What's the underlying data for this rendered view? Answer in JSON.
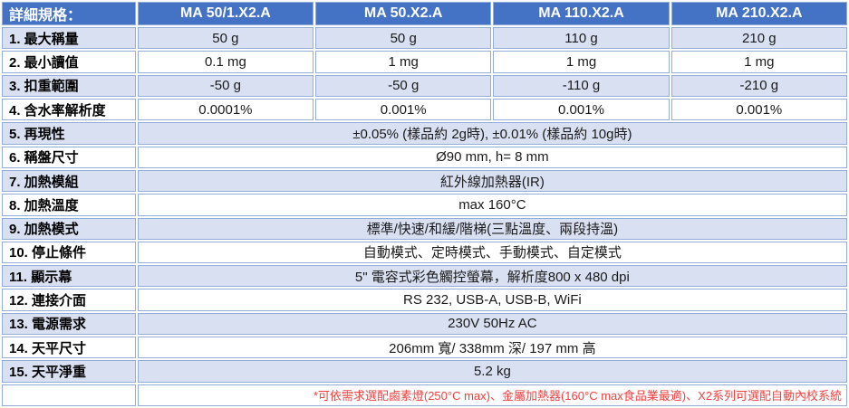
{
  "table": {
    "header": {
      "label": "詳細規格：",
      "columns": [
        "MA 50/1.X2.A",
        "MA 50.X2.A",
        "MA 110.X2.A",
        "MA 210.X2.A"
      ]
    },
    "rows": [
      {
        "label": "1. 最大稱量",
        "values": [
          "50 g",
          "50 g",
          "110 g",
          "210 g"
        ]
      },
      {
        "label": "2. 最小讀值",
        "values": [
          "0.1 mg",
          "1 mg",
          "1 mg",
          "1 mg"
        ]
      },
      {
        "label": "3. 扣重範圍",
        "values": [
          "-50 g",
          "-50 g",
          "-110 g",
          "-210 g"
        ]
      },
      {
        "label": "4. 含水率解析度",
        "values": [
          "0.0001%",
          "0.001%",
          "0.001%",
          "0.001%"
        ]
      },
      {
        "label": "5. 再現性",
        "merged": "±0.05% (樣品約 2g時), ±0.01% (樣品約 10g時)"
      },
      {
        "label": "6. 稱盤尺寸",
        "merged": "Ø90 mm, h= 8 mm"
      },
      {
        "label": "7. 加熱模組",
        "merged": "紅外線加熱器(IR)"
      },
      {
        "label": "8. 加熱溫度",
        "merged": "max 160°C"
      },
      {
        "label": "9. 加熱模式",
        "merged": "標準/快速/和緩/階梯(三點溫度、兩段持溫)"
      },
      {
        "label": "10. 停止條件",
        "merged": "自動模式、定時模式、手動模式、自定模式"
      },
      {
        "label": "11. 顯示幕",
        "merged": "5\"  電容式彩色觸控螢幕，解析度800 x 480 dpi"
      },
      {
        "label": "12. 連接介面",
        "merged": "RS 232, USB-A, USB-B, WiFi"
      },
      {
        "label": "13. 電源需求",
        "merged": "230V 50Hz AC"
      },
      {
        "label": "14. 天平尺寸",
        "merged": "206mm 寬/ 338mm 深/ 197 mm 高"
      },
      {
        "label": "15. 天平淨重",
        "merged": "5.2 kg"
      }
    ],
    "footnote": "*可依需求選配鹵素燈(250°C max)、金屬加熱器(160°C max食品業最適)、X2系列可選配自動內校系統"
  },
  "colors": {
    "header_bg": "#4472C4",
    "header_text": "#FFFFFF",
    "row_alt_bg": "#D9E0F2",
    "row_bg": "#FFFFFF",
    "grid_border": "#94ACD8",
    "footnote_text": "#F04141"
  }
}
